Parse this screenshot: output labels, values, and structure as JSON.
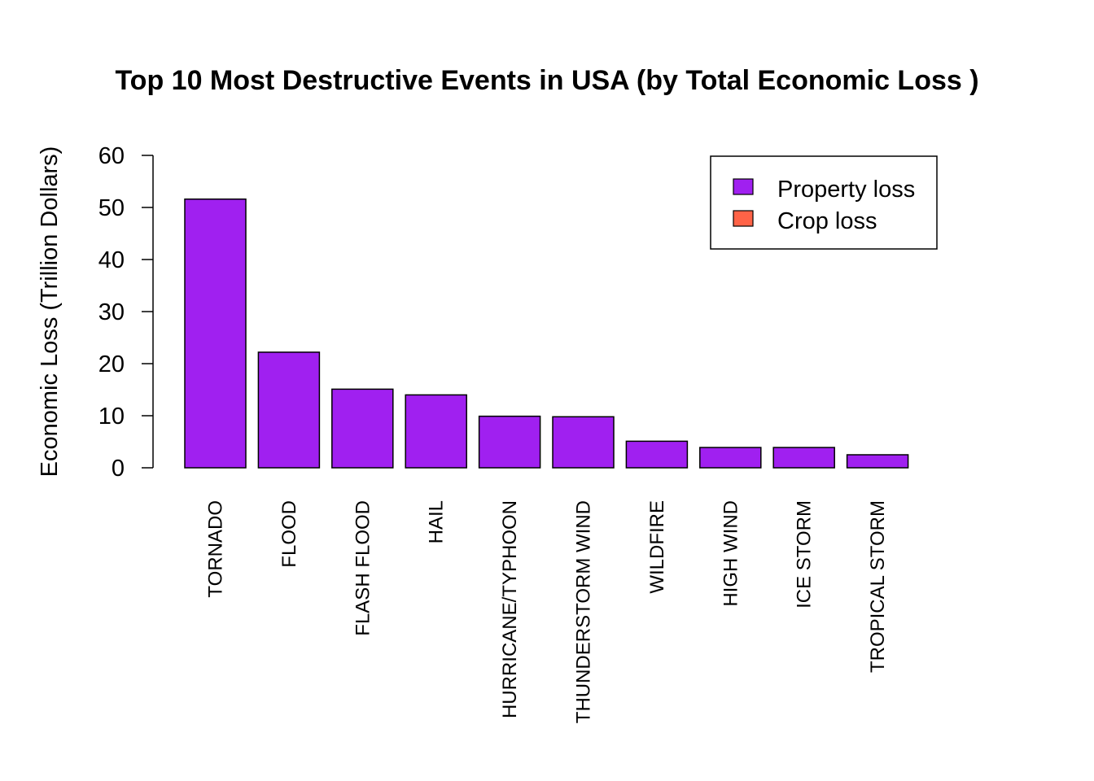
{
  "chart_data": {
    "type": "bar",
    "title": "Top 10 Most Destructive Events in USA (by Total Economic Loss )",
    "xlabel": "",
    "ylabel": "Economic Loss (Trillion Dollars)",
    "ylim": [
      0,
      60
    ],
    "yticks": [
      "0",
      "10",
      "20",
      "30",
      "40",
      "50",
      "60"
    ],
    "categories": [
      "TORNADO",
      "FLOOD",
      "FLASH FLOOD",
      "HAIL",
      "HURRICANE/TYPHOON",
      "THUNDERSTORM WIND",
      "WILDFIRE",
      "HIGH WIND",
      "ICE STORM",
      "TROPICAL STORM"
    ],
    "series": [
      {
        "name": "Property loss",
        "color": "#a020f0",
        "values": [
          51.6,
          22.2,
          15.1,
          14.0,
          9.9,
          9.8,
          5.1,
          3.9,
          3.9,
          2.5
        ]
      },
      {
        "name": "Crop loss",
        "color": "#ff6347",
        "values": [
          0,
          0,
          0,
          0,
          0,
          0,
          0,
          0,
          0,
          0
        ]
      }
    ],
    "legend_position": "top-right",
    "grid": false
  }
}
